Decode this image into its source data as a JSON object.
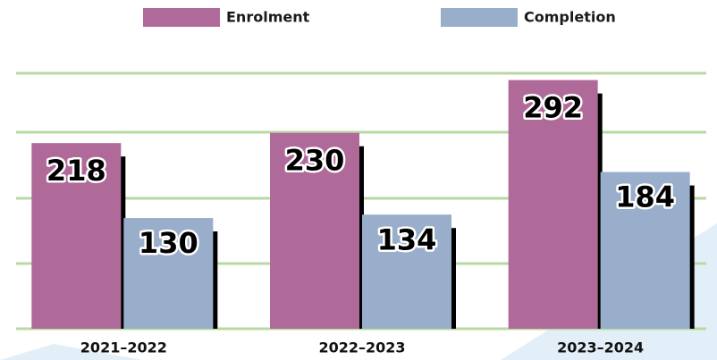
{
  "chart_data": {
    "type": "bar",
    "categories": [
      "2021–2022",
      "2022–2023",
      "2023–2024"
    ],
    "series": [
      {
        "name": "Enrolment",
        "color": "#b06a9a",
        "values": [
          218,
          230,
          292
        ]
      },
      {
        "name": "Completion",
        "color": "#98aecb",
        "values": [
          130,
          134,
          184
        ]
      }
    ],
    "ylim": [
      0,
      300
    ],
    "legend": "top"
  }
}
